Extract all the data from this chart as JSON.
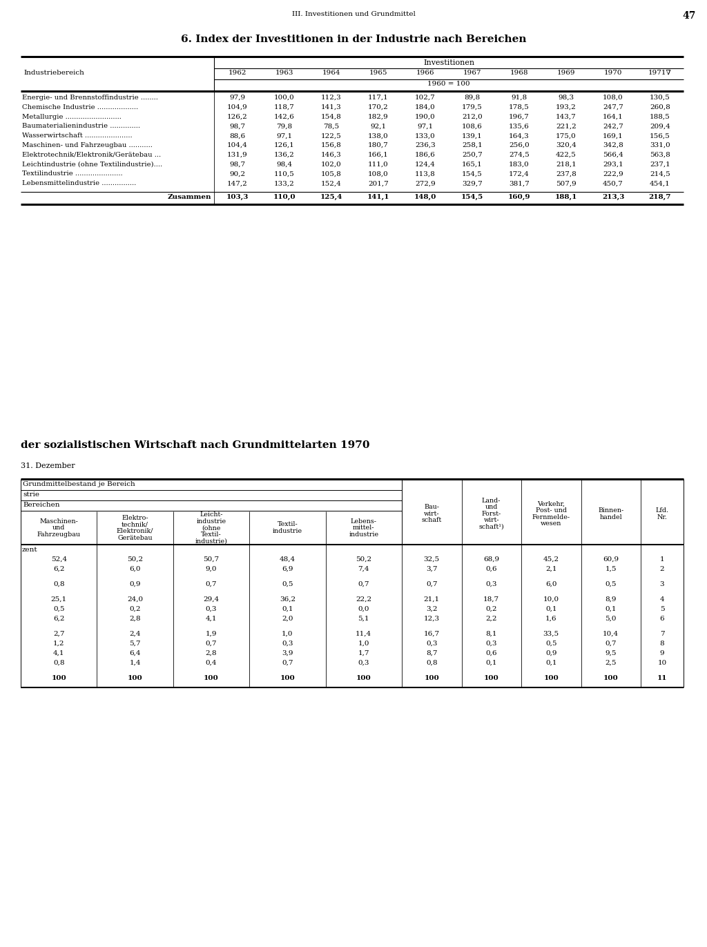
{
  "page_header": "III. Investitionen und Grundmittel",
  "page_number": "47",
  "table1_title": "6. Index der Investitionen in der Industrie nach Bereichen",
  "table1_years": [
    "1962",
    "1963",
    "1964",
    "1965",
    "1966",
    "1967",
    "1968",
    "1969",
    "1970",
    "1971∇"
  ],
  "table1_rows": [
    [
      "Energie- und Brennstoffindustrie ........",
      "97,9",
      "100,0",
      "112,3",
      "117,1",
      "102,7",
      "89,8",
      "91,8",
      "98,3",
      "108,0",
      "130,5"
    ],
    [
      "Chemische Industrie ...................",
      "104,9",
      "118,7",
      "141,3",
      "170,2",
      "184,0",
      "179,5",
      "178,5",
      "193,2",
      "247,7",
      "260,8"
    ],
    [
      "Metallurgie ..........................",
      "126,2",
      "142,6",
      "154,8",
      "182,9",
      "190,0",
      "212,0",
      "196,7",
      "143,7",
      "164,1",
      "188,5"
    ],
    [
      "Baumaterialienindustrie ..............",
      "98,7",
      "79,8",
      "78,5",
      "92,1",
      "97,1",
      "108,6",
      "135,6",
      "221,2",
      "242,7",
      "209,4"
    ],
    [
      "Wasserwirtschaft ......................",
      "88,6",
      "97,1",
      "122,5",
      "138,0",
      "133,0",
      "139,1",
      "164,3",
      "175,0",
      "169,1",
      "156,5"
    ],
    [
      "Maschinen- und Fahrzeugbau ...........",
      "104,4",
      "126,1",
      "156,8",
      "180,7",
      "236,3",
      "258,1",
      "256,0",
      "320,4",
      "342,8",
      "331,0"
    ],
    [
      "Elektrotechnik/Elektronik/Gerätebau ...",
      "131,9",
      "136,2",
      "146,3",
      "166,1",
      "186,6",
      "250,7",
      "274,5",
      "422,5",
      "566,4",
      "563,8"
    ],
    [
      "Leichtindustrie (ohne Textilindustrie)....",
      "98,7",
      "98,4",
      "102,0",
      "111,0",
      "124,4",
      "165,1",
      "183,0",
      "218,1",
      "293,1",
      "237,1"
    ],
    [
      "Textilindustrie ......................",
      "90,2",
      "110,5",
      "105,8",
      "108,0",
      "113,8",
      "154,5",
      "172,4",
      "237,8",
      "222,9",
      "214,5"
    ],
    [
      "Lebensmittelindustrie ................",
      "147,2",
      "133,2",
      "152,4",
      "201,7",
      "272,9",
      "329,7",
      "381,7",
      "507,9",
      "450,7",
      "454,1"
    ]
  ],
  "table1_total": [
    "Zusammen",
    "103,3",
    "110,0",
    "125,4",
    "141,1",
    "148,0",
    "154,5",
    "160,9",
    "188,1",
    "213,3",
    "218,7"
  ],
  "section2_title": "der sozialistischen Wirtschaft nach Grundmittelarten 1970",
  "section2_date": "31. Dezember",
  "table2_col_headers": [
    "Maschinen-\nund\nFahrzeugbau",
    "Elektro-\ntechnik/\nElektronik/\nGerätebau",
    "Leicht-\nindustrie\n(ohne\nTextil-\nindustrie)",
    "Textil-\nindustrie",
    "Lebens-\nmittel-\nindustrie",
    "Bau-\nwirt-\nschaft",
    "Land-\nund\nForst-\nwirt-\nschaft¹)",
    "Verkehr,\nPost- und\nFernmelde-\nwesen",
    "Binnen-\nhandel",
    "Lfd.\nNr."
  ],
  "table2_rows": [
    [
      "52,4",
      "50,2",
      "50,7",
      "48,4",
      "50,2",
      "32,5",
      "68,9",
      "45,2",
      "60,9",
      "1"
    ],
    [
      "6,2",
      "6,0",
      "9,0",
      "6,9",
      "7,4",
      "3,7",
      "0,6",
      "2,1",
      "1,5",
      "2"
    ],
    [
      "0,8",
      "0,9",
      "0,7",
      "0,5",
      "0,7",
      "0,7",
      "0,3",
      "6,0",
      "0,5",
      "3"
    ],
    [
      "25,1",
      "24,0",
      "29,4",
      "36,2",
      "22,2",
      "21,1",
      "18,7",
      "10,0",
      "8,9",
      "4"
    ],
    [
      "0,5",
      "0,2",
      "0,3",
      "0,1",
      "0,0",
      "3,2",
      "0,2",
      "0,1",
      "0,1",
      "5"
    ],
    [
      "6,2",
      "2,8",
      "4,1",
      "2,0",
      "5,1",
      "12,3",
      "2,2",
      "1,6",
      "5,0",
      "6"
    ],
    [
      "2,7",
      "2,4",
      "1,9",
      "1,0",
      "11,4",
      "16,7",
      "8,1",
      "33,5",
      "10,4",
      "7"
    ],
    [
      "1,2",
      "5,7",
      "0,7",
      "0,3",
      "1,0",
      "0,3",
      "0,3",
      "0,5",
      "0,7",
      "8"
    ],
    [
      "4,1",
      "6,4",
      "2,8",
      "3,9",
      "1,7",
      "8,7",
      "0,6",
      "0,9",
      "9,5",
      "9"
    ],
    [
      "0,8",
      "1,4",
      "0,4",
      "0,7",
      "0,3",
      "0,8",
      "0,1",
      "0,1",
      "2,5",
      "10"
    ],
    [
      "100",
      "100",
      "100",
      "100",
      "100",
      "100",
      "100",
      "100",
      "100",
      "11"
    ]
  ],
  "table2_row_groups": [
    1,
    1,
    1,
    3,
    1,
    4,
    1
  ],
  "bg_color": "#ffffff"
}
